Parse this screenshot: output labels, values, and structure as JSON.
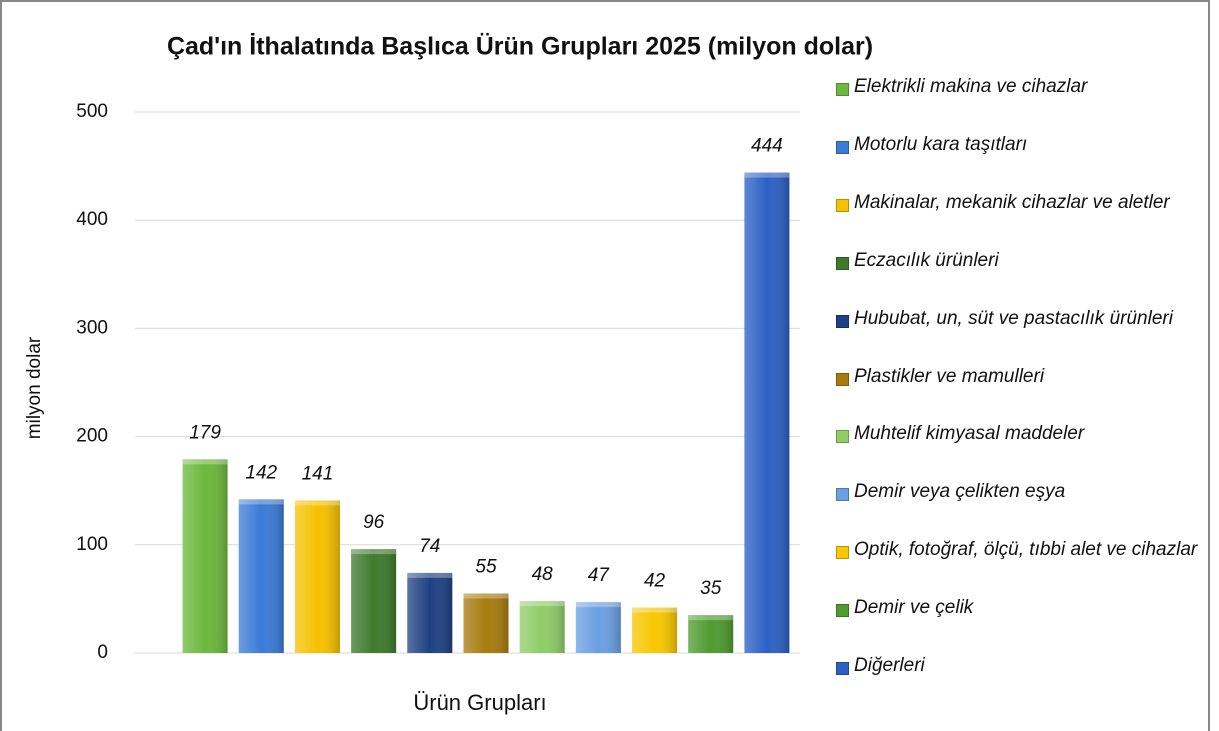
{
  "chart_data": {
    "type": "bar",
    "title": "Çad'ın İthalatında Başlıca Ürün Grupları 2025 (milyon dolar)",
    "x_label": "Ürün Grupları",
    "y_label": "milyon dolar",
    "ylim": [
      0,
      500
    ],
    "yticks": [
      0,
      100,
      200,
      300,
      400,
      500
    ],
    "grid": true,
    "legend": "right",
    "series": [
      {
        "name": "Elektrikli makina ve cihazlar",
        "color": "#6cb83c",
        "values": [
          179
        ]
      },
      {
        "name": "Motorlu kara taşıtları",
        "color": "#3b7bd8",
        "values": [
          142
        ]
      },
      {
        "name": "Makinalar, mekanik cihazlar ve aletler",
        "color": "#f6c100",
        "values": [
          141
        ]
      },
      {
        "name": "Eczacılık ürünleri",
        "color": "#3e7a2c",
        "values": [
          96
        ]
      },
      {
        "name": "Hububat, un, süt ve pastacılık ürünleri",
        "color": "#1f4183",
        "values": [
          74
        ]
      },
      {
        "name": "Plastikler ve mamulleri",
        "color": "#a77b0e",
        "values": [
          55
        ]
      },
      {
        "name": "Muhtelif kimyasal maddeler",
        "color": "#8fcd68",
        "values": [
          48
        ]
      },
      {
        "name": "Demir veya çelikten eşya",
        "color": "#6a9fe2",
        "values": [
          47
        ]
      },
      {
        "name": "Optik, fotoğraf, ölçü, tıbbi alet ve cihazlar",
        "color": "#f7c700",
        "values": [
          42
        ]
      },
      {
        "name": "Demir ve çelik",
        "color": "#4f9b2f",
        "values": [
          35
        ]
      },
      {
        "name": "Diğerleri",
        "color": "#2b60c4",
        "values": [
          444
        ]
      }
    ]
  }
}
